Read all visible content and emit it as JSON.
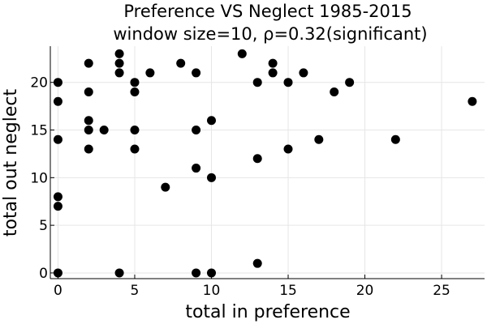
{
  "chart_data": {
    "type": "scatter",
    "title_line1": "Preference VS Neglect 1985-2015",
    "title_line2": "window size=10, ρ=0.32(significant)",
    "xlabel": "total in preference",
    "ylabel": "total out neglect",
    "xlim": [
      -0.5,
      27.8
    ],
    "ylim": [
      -0.6,
      23.8
    ],
    "xticks": [
      0,
      5,
      10,
      15,
      20,
      25
    ],
    "yticks": [
      0,
      5,
      10,
      15,
      20
    ],
    "grid": true,
    "legend": "none",
    "marker_color": "#000000",
    "points": [
      {
        "x": 0,
        "y": 0
      },
      {
        "x": 0,
        "y": 7
      },
      {
        "x": 0,
        "y": 8
      },
      {
        "x": 0,
        "y": 14
      },
      {
        "x": 0,
        "y": 18
      },
      {
        "x": 0,
        "y": 20
      },
      {
        "x": 2,
        "y": 13
      },
      {
        "x": 2,
        "y": 15
      },
      {
        "x": 2,
        "y": 16
      },
      {
        "x": 2,
        "y": 19
      },
      {
        "x": 2,
        "y": 22
      },
      {
        "x": 3,
        "y": 15
      },
      {
        "x": 4,
        "y": 0
      },
      {
        "x": 4,
        "y": 21
      },
      {
        "x": 4,
        "y": 22
      },
      {
        "x": 4,
        "y": 23
      },
      {
        "x": 5,
        "y": 13
      },
      {
        "x": 5,
        "y": 15
      },
      {
        "x": 5,
        "y": 19
      },
      {
        "x": 5,
        "y": 20
      },
      {
        "x": 6,
        "y": 21
      },
      {
        "x": 7,
        "y": 9
      },
      {
        "x": 8,
        "y": 22
      },
      {
        "x": 9,
        "y": 0
      },
      {
        "x": 9,
        "y": 11
      },
      {
        "x": 9,
        "y": 15
      },
      {
        "x": 9,
        "y": 21
      },
      {
        "x": 10,
        "y": 0
      },
      {
        "x": 10,
        "y": 10
      },
      {
        "x": 10,
        "y": 16
      },
      {
        "x": 12,
        "y": 23
      },
      {
        "x": 13,
        "y": 1
      },
      {
        "x": 13,
        "y": 12
      },
      {
        "x": 13,
        "y": 20
      },
      {
        "x": 14,
        "y": 21
      },
      {
        "x": 14,
        "y": 22
      },
      {
        "x": 15,
        "y": 13
      },
      {
        "x": 15,
        "y": 20
      },
      {
        "x": 16,
        "y": 21
      },
      {
        "x": 17,
        "y": 14
      },
      {
        "x": 18,
        "y": 19
      },
      {
        "x": 19,
        "y": 20
      },
      {
        "x": 22,
        "y": 14
      },
      {
        "x": 27,
        "y": 18
      }
    ]
  }
}
